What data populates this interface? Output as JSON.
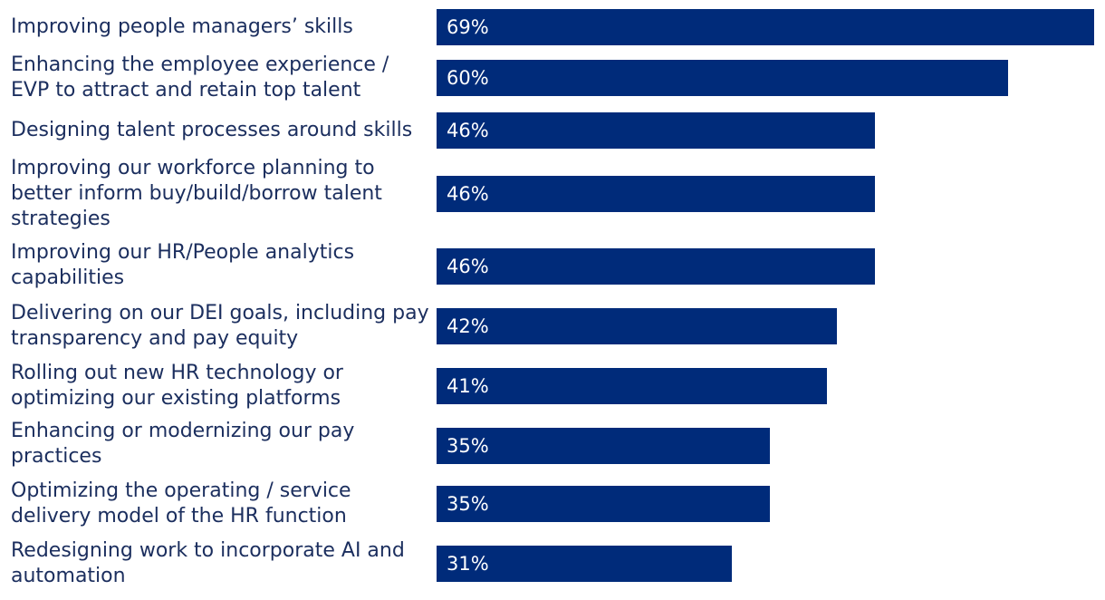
{
  "chart_data": {
    "type": "bar",
    "orientation": "horizontal",
    "title": "",
    "xlabel": "",
    "ylabel": "",
    "xlim": [
      0,
      69
    ],
    "grid": false,
    "legend": "none",
    "bar_color": "#002b7a",
    "label_color": "#1b2e5e",
    "value_label_color": "#ffffff",
    "categories": [
      "Improving people managers’ skills",
      "Enhancing the employee experience / EVP to attract and retain top talent",
      "Designing talent processes around skills",
      "Improving our workforce planning to better inform buy/build/borrow talent strategies",
      "Improving our HR/People analytics capabilities",
      "Delivering on our DEI goals, including pay transparency and pay equity",
      "Rolling out new HR technology or optimizing our existing platforms",
      "Enhancing or modernizing our pay practices",
      "Optimizing the operating / service delivery model of the HR function",
      "Redesigning work to incorporate AI and automation"
    ],
    "values": [
      69,
      60,
      46,
      46,
      46,
      42,
      41,
      35,
      35,
      31
    ],
    "value_labels": [
      "69%",
      "60%",
      "46%",
      "46%",
      "46%",
      "42%",
      "41%",
      "35%",
      "35%",
      "31%"
    ]
  }
}
